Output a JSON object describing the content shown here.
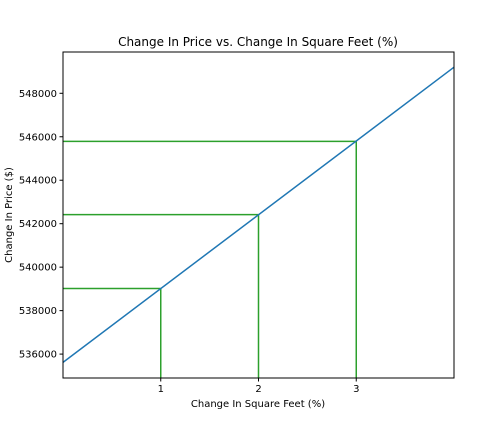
{
  "chart_data": {
    "type": "line",
    "title": "Change In Price vs. Change In Square Feet (%)",
    "xlabel": "Change In Square Feet (%)",
    "ylabel": "Change In Price ($)",
    "xlim": [
      0,
      4
    ],
    "ylim": [
      534900,
      549900
    ],
    "grid": false,
    "legend": "none",
    "x_ticks": [
      1,
      2,
      3
    ],
    "x_tick_labels": [
      "1",
      "2",
      "3"
    ],
    "y_ticks": [
      536000,
      538000,
      540000,
      542000,
      544000,
      546000,
      548000
    ],
    "y_tick_labels": [
      "536000",
      "538000",
      "540000",
      "542000",
      "544000",
      "546000",
      "548000"
    ],
    "series": [
      {
        "color": "#1f77b4",
        "x": [
          0,
          4
        ],
        "y": [
          535620,
          549200
        ]
      }
    ],
    "reference_lines": [
      {
        "x": 1,
        "y": 539020,
        "color": "#2ca02c"
      },
      {
        "x": 2,
        "y": 542420,
        "color": "#2ca02c"
      },
      {
        "x": 3,
        "y": 545790,
        "color": "#2ca02c"
      }
    ]
  }
}
